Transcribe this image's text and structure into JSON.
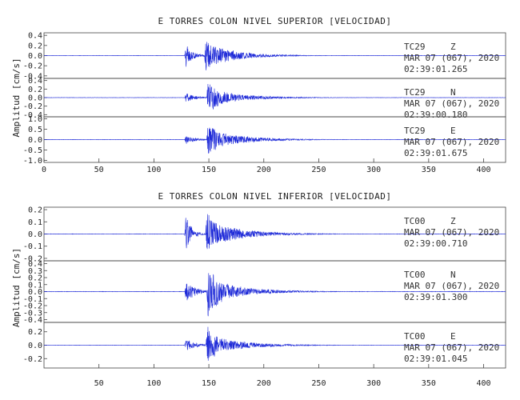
{
  "chart_data": [
    {
      "type": "line",
      "title": "E TORRES COLON NIVEL SUPERIOR [VELOCIDAD]",
      "ylabel": "Amplitud [cm/s]",
      "xlim": [
        0,
        420
      ],
      "x_ticks": [
        "0",
        "50",
        "100",
        "150",
        "200",
        "250",
        "300",
        "350",
        "400"
      ],
      "line_color": "#1f2bd8",
      "series": [
        {
          "station": "TC29",
          "component": "Z",
          "date": "MAR 07 (067), 2020",
          "time": "02:39:01.265",
          "ylim": [
            -0.45,
            0.45
          ],
          "y_ticks": [
            "0.4",
            "0.2",
            "0.0",
            "-0.2",
            "-0.4"
          ],
          "peak_amplitude": 0.4,
          "onset": 128,
          "events": [
            {
              "t": 128,
              "amp": 0.28,
              "decay": 6
            },
            {
              "t": 146,
              "amp": 0.42,
              "decay": 10
            },
            {
              "t": 152,
              "amp": 0.22,
              "decay": 25
            }
          ]
        },
        {
          "station": "TC29",
          "component": "N",
          "date": "MAR 07 (067), 2020",
          "time": "02:39:00.180",
          "ylim": [
            -0.45,
            0.45
          ],
          "y_ticks": [
            "0.4",
            "0.2",
            "0.0",
            "-0.2",
            "-0.4"
          ],
          "peak_amplitude": 0.4,
          "onset": 128,
          "events": [
            {
              "t": 128,
              "amp": 0.14,
              "decay": 8
            },
            {
              "t": 148,
              "amp": 0.43,
              "decay": 14
            },
            {
              "t": 160,
              "amp": 0.15,
              "decay": 30
            }
          ]
        },
        {
          "station": "TC29",
          "component": "E",
          "date": "MAR 07 (067), 2020",
          "time": "02:39:01.675",
          "ylim": [
            -1.1,
            1.1
          ],
          "y_ticks": [
            "1.0",
            "0.5",
            "0.0",
            "-0.5",
            "-1.0"
          ],
          "peak_amplitude": 1.0,
          "onset": 128,
          "events": [
            {
              "t": 128,
              "amp": 0.25,
              "decay": 8
            },
            {
              "t": 148,
              "amp": 1.05,
              "decay": 11
            },
            {
              "t": 160,
              "amp": 0.35,
              "decay": 30
            }
          ]
        }
      ]
    },
    {
      "type": "line",
      "title": "E TORRES COLON NIVEL INFERIOR [VELOCIDAD]",
      "ylabel": "Amplitud [cm/s]",
      "xlim": [
        0,
        420
      ],
      "x_ticks": [
        "50",
        "100",
        "150",
        "200",
        "250",
        "300",
        "350",
        "400"
      ],
      "line_color": "#1f2bd8",
      "series": [
        {
          "station": "TC00",
          "component": "Z",
          "date": "MAR 07 (067), 2020",
          "time": "02:39:00.710",
          "ylim": [
            -0.22,
            0.22
          ],
          "y_ticks": [
            "0.2",
            "0.1",
            "0.0",
            "-0.1",
            "-0.2"
          ],
          "peak_amplitude": 0.2,
          "onset": 128,
          "events": [
            {
              "t": 128,
              "amp": 0.22,
              "decay": 5
            },
            {
              "t": 147,
              "amp": 0.21,
              "decay": 12
            },
            {
              "t": 155,
              "amp": 0.09,
              "decay": 30
            }
          ]
        },
        {
          "station": "TC00",
          "component": "N",
          "date": "MAR 07 (067), 2020",
          "time": "02:39:01.300",
          "ylim": [
            -0.44,
            0.44
          ],
          "y_ticks": [
            "0.4",
            "0.3",
            "0.2",
            "0.1",
            "0.0",
            "-0.1",
            "-0.2",
            "-0.3",
            "-0.4"
          ],
          "peak_amplitude": 0.4,
          "onset": 128,
          "events": [
            {
              "t": 128,
              "amp": 0.2,
              "decay": 8
            },
            {
              "t": 148,
              "amp": 0.42,
              "decay": 14
            },
            {
              "t": 160,
              "amp": 0.14,
              "decay": 30
            }
          ]
        },
        {
          "station": "TC00",
          "component": "E",
          "date": "MAR 07 (067), 2020",
          "time": "02:39:01.045",
          "ylim": [
            -0.34,
            0.34
          ],
          "y_ticks": [
            "0.2",
            "0.0",
            "-0.2"
          ],
          "peak_amplitude": 0.3,
          "onset": 128,
          "events": [
            {
              "t": 128,
              "amp": 0.12,
              "decay": 8
            },
            {
              "t": 147,
              "amp": 0.33,
              "decay": 12
            },
            {
              "t": 158,
              "amp": 0.12,
              "decay": 30
            }
          ]
        }
      ]
    }
  ]
}
